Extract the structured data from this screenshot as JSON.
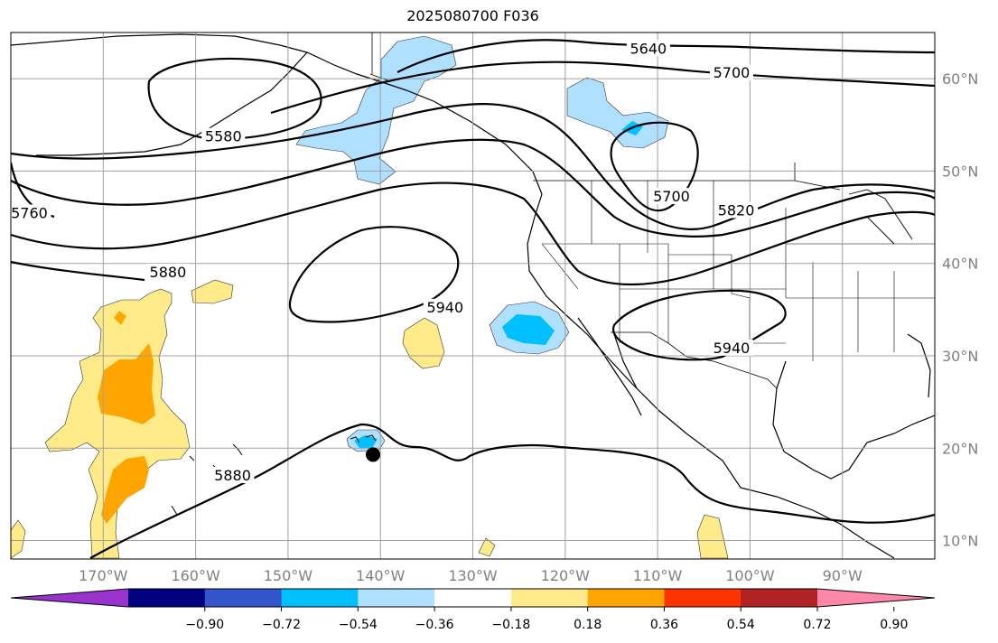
{
  "title": "2025080700 F036",
  "map_extent": {
    "lon_min": -180,
    "lon_max": -80,
    "lat_min": 8,
    "lat_max": 65
  },
  "lat_labels": [
    {
      "lat": 60,
      "text": "60°N"
    },
    {
      "lat": 50,
      "text": "50°N"
    },
    {
      "lat": 40,
      "text": "40°N"
    },
    {
      "lat": 30,
      "text": "30°N"
    },
    {
      "lat": 20,
      "text": "20°N"
    },
    {
      "lat": 10,
      "text": "10°N"
    }
  ],
  "lon_labels": [
    {
      "lon": -170,
      "text": "170°W"
    },
    {
      "lon": -160,
      "text": "160°W"
    },
    {
      "lon": -150,
      "text": "150°W"
    },
    {
      "lon": -140,
      "text": "140°W"
    },
    {
      "lon": -130,
      "text": "130°W"
    },
    {
      "lon": -120,
      "text": "120°W"
    },
    {
      "lon": -110,
      "text": "110°W"
    },
    {
      "lon": -100,
      "text": "100°W"
    },
    {
      "lon": -90,
      "text": "90°W"
    }
  ],
  "contour_labels": [
    {
      "text": "5640",
      "lon": -111,
      "lat": 63.0
    },
    {
      "text": "5700",
      "lon": -102,
      "lat": 60.4
    },
    {
      "text": "5580",
      "lon": -157,
      "lat": 53.5
    },
    {
      "text": "5760",
      "lon": -178,
      "lat": 45.2
    },
    {
      "text": "5700",
      "lon": -108.5,
      "lat": 47.0
    },
    {
      "text": "5820",
      "lon": -101.5,
      "lat": 45.5
    },
    {
      "text": "5880",
      "lon": -163,
      "lat": 38.8
    },
    {
      "text": "5940",
      "lon": -133,
      "lat": 35.0
    },
    {
      "text": "5940",
      "lon": -102,
      "lat": 30.6
    },
    {
      "text": "5880",
      "lon": -156,
      "lat": 16.8
    }
  ],
  "storm_marker": {
    "lon": -140.8,
    "lat": 19.3
  },
  "colorbar": {
    "colors": [
      "#9933cc",
      "#000080",
      "#3355cc",
      "#00bfff",
      "#b0e0ff",
      "#ffffff",
      "#ffeb8a",
      "#ffa500",
      "#ff3300",
      "#b22222",
      "#ff88aa"
    ],
    "ticks": [
      "−0.90",
      "−0.72",
      "−0.54",
      "−0.36",
      "−0.18",
      "0.18",
      "0.36",
      "0.54",
      "0.72",
      "0.90"
    ],
    "extend": "both"
  }
}
